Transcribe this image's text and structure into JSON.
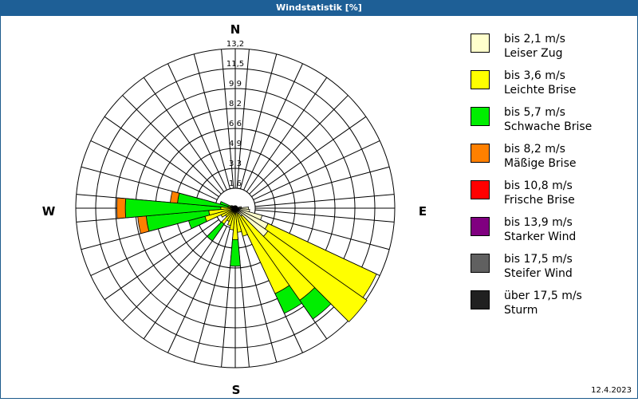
{
  "header": {
    "title": "Windstatistik [%]"
  },
  "footer": {
    "date": "12.4.2023"
  },
  "compass": {
    "north": "N",
    "east": "E",
    "south": "S",
    "west": "W"
  },
  "legend": [
    {
      "speed": "bis 2,1 m/s",
      "name": "Leiser Zug",
      "color": "#ffffcc"
    },
    {
      "speed": "bis 3,6 m/s",
      "name": "Leichte Brise",
      "color": "#ffff00"
    },
    {
      "speed": "bis 5,7 m/s",
      "name": "Schwache Brise",
      "color": "#00ee00"
    },
    {
      "speed": "bis 8,2 m/s",
      "name": "Mäßige Brise",
      "color": "#ff8000"
    },
    {
      "speed": "bis 10,8 m/s",
      "name": "Frische Brise",
      "color": "#ff0000"
    },
    {
      "speed": "bis 13,9 m/s",
      "name": "Starker Wind",
      "color": "#800080"
    },
    {
      "speed": "bis 17,5 m/s",
      "name": "Steifer Wind",
      "color": "#606060"
    },
    {
      "speed": "über 17,5 m/s",
      "name": "Sturm",
      "color": "#202020"
    }
  ],
  "chart_data": {
    "type": "windrose",
    "title": "Windstatistik [%]",
    "unit": "%",
    "ring_labels": [
      "1,6",
      "3,3",
      "4,9",
      "6,6",
      "8,2",
      "9,9",
      "11,5",
      "13,2"
    ],
    "rmax": 13.2,
    "sector_width_deg": 10,
    "classes": [
      "bis 2,1 m/s",
      "bis 3,6 m/s",
      "bis 5,7 m/s",
      "bis 8,2 m/s",
      "bis 10,8 m/s",
      "bis 13,9 m/s",
      "bis 17,5 m/s",
      "über 17,5 m/s"
    ],
    "note": "cumulative values per sector (percent) for classes [Leiser Zug, Leichte Brise, Schwache Brise, Mäßige Brise]",
    "sectors": [
      {
        "bearing": 90,
        "cumulative": [
          1.1,
          1.1,
          1.1,
          1.1
        ]
      },
      {
        "bearing": 100,
        "cumulative": [
          1.2,
          1.2,
          1.2,
          1.2
        ]
      },
      {
        "bearing": 110,
        "cumulative": [
          2.3,
          2.3,
          2.3,
          2.3
        ]
      },
      {
        "bearing": 120,
        "cumulative": [
          3.0,
          12.9,
          12.9,
          12.9
        ]
      },
      {
        "bearing": 130,
        "cumulative": [
          3.3,
          13.3,
          13.3,
          13.3
        ]
      },
      {
        "bearing": 140,
        "cumulative": [
          0.8,
          9.3,
          11.2,
          11.2
        ]
      },
      {
        "bearing": 150,
        "cumulative": [
          0.5,
          7.8,
          9.6,
          9.6
        ]
      },
      {
        "bearing": 160,
        "cumulative": [
          0.3,
          2.4,
          2.4,
          2.4
        ]
      },
      {
        "bearing": 170,
        "cumulative": [
          0.2,
          2.0,
          2.0,
          2.0
        ]
      },
      {
        "bearing": 180,
        "cumulative": [
          0.2,
          2.6,
          4.8,
          4.8
        ]
      },
      {
        "bearing": 190,
        "cumulative": [
          0.2,
          1.8,
          1.8,
          1.8
        ]
      },
      {
        "bearing": 200,
        "cumulative": [
          0.2,
          1.5,
          1.5,
          1.5
        ]
      },
      {
        "bearing": 210,
        "cumulative": [
          0.2,
          1.2,
          1.2,
          1.2
        ]
      },
      {
        "bearing": 220,
        "cumulative": [
          0.2,
          1.6,
          3.3,
          3.3
        ]
      },
      {
        "bearing": 230,
        "cumulative": [
          0.2,
          1.0,
          1.0,
          1.0
        ]
      },
      {
        "bearing": 240,
        "cumulative": [
          0.2,
          1.3,
          1.3,
          1.3
        ]
      },
      {
        "bearing": 250,
        "cumulative": [
          0.2,
          2.6,
          4.0,
          4.0
        ]
      },
      {
        "bearing": 260,
        "cumulative": [
          0.2,
          2.2,
          7.4,
          8.1
        ]
      },
      {
        "bearing": 270,
        "cumulative": [
          0.2,
          1.2,
          9.1,
          9.8
        ]
      },
      {
        "bearing": 280,
        "cumulative": [
          0.2,
          0.6,
          4.8,
          5.4
        ]
      },
      {
        "bearing": 290,
        "cumulative": [
          0.2,
          0.3,
          1.3,
          1.3
        ]
      },
      {
        "bearing": 300,
        "cumulative": [
          0.1,
          0.4,
          0.4,
          0.4
        ]
      },
      {
        "bearing": 310,
        "cumulative": [
          0.1,
          0.3,
          0.3,
          0.3
        ]
      },
      {
        "bearing": 320,
        "cumulative": [
          0.1,
          0.2,
          0.2,
          0.2
        ]
      },
      {
        "bearing": 330,
        "cumulative": [
          0.1,
          0.2,
          0.2,
          0.2
        ]
      },
      {
        "bearing": 340,
        "cumulative": [
          0.1,
          0.2,
          0.2,
          0.2
        ]
      },
      {
        "bearing": 350,
        "cumulative": [
          0.1,
          0.2,
          0.2,
          0.2
        ]
      },
      {
        "bearing": 0,
        "cumulative": [
          0.1,
          0.2,
          0.2,
          0.2
        ]
      },
      {
        "bearing": 10,
        "cumulative": [
          0.1,
          0.2,
          0.2,
          0.2
        ]
      },
      {
        "bearing": 20,
        "cumulative": [
          0.1,
          0.2,
          0.2,
          0.2
        ]
      },
      {
        "bearing": 30,
        "cumulative": [
          0.1,
          0.2,
          0.2,
          0.2
        ]
      },
      {
        "bearing": 40,
        "cumulative": [
          0.1,
          0.2,
          0.2,
          0.2
        ]
      },
      {
        "bearing": 50,
        "cumulative": [
          0.1,
          0.2,
          0.2,
          0.2
        ]
      },
      {
        "bearing": 60,
        "cumulative": [
          0.1,
          0.2,
          0.2,
          0.2
        ]
      },
      {
        "bearing": 70,
        "cumulative": [
          0.1,
          0.2,
          0.2,
          0.2
        ]
      },
      {
        "bearing": 80,
        "cumulative": [
          0.5,
          0.5,
          0.5,
          0.5
        ]
      }
    ]
  }
}
